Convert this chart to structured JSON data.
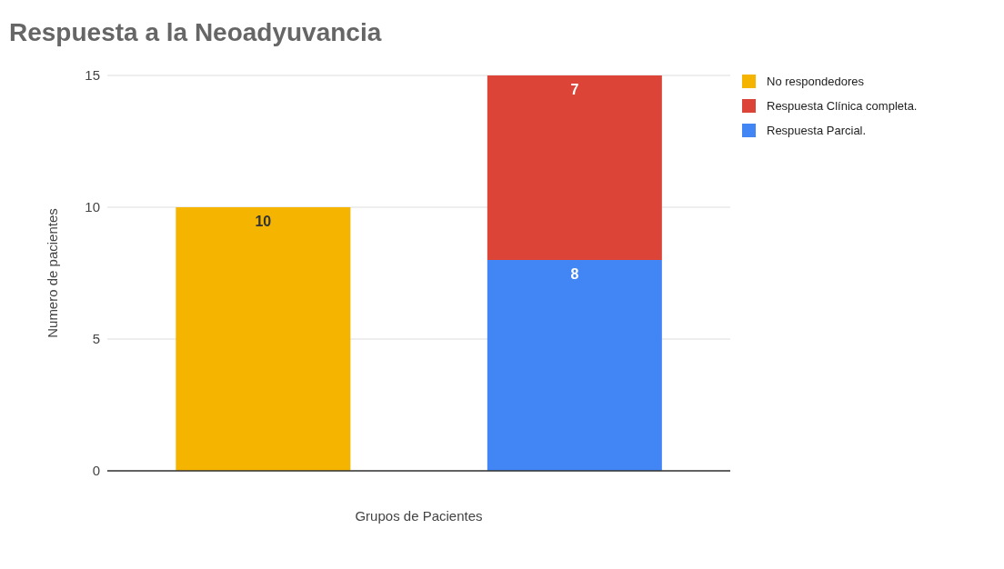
{
  "chart_data": {
    "type": "bar",
    "title": "Respuesta a la Neoadyuvancia",
    "xlabel": "Grupos de Pacientes",
    "ylabel": "Numero de pacientes",
    "categories": [
      null,
      null
    ],
    "stacked": true,
    "series": [
      {
        "name": "Respuesta Parcial.",
        "color": "#4285f4",
        "values": [
          null,
          8
        ]
      },
      {
        "name": "Respuesta Clínica completa.",
        "color": "#db4437",
        "values": [
          null,
          7
        ]
      },
      {
        "name": "No respondedores",
        "color": "#f4b400",
        "values": [
          10,
          null
        ]
      }
    ],
    "ylim": [
      0,
      15
    ],
    "yticks": [
      0,
      5,
      10,
      15
    ],
    "grid": "y",
    "legend": "right",
    "tick_labels": "y",
    "data_labels": true
  }
}
